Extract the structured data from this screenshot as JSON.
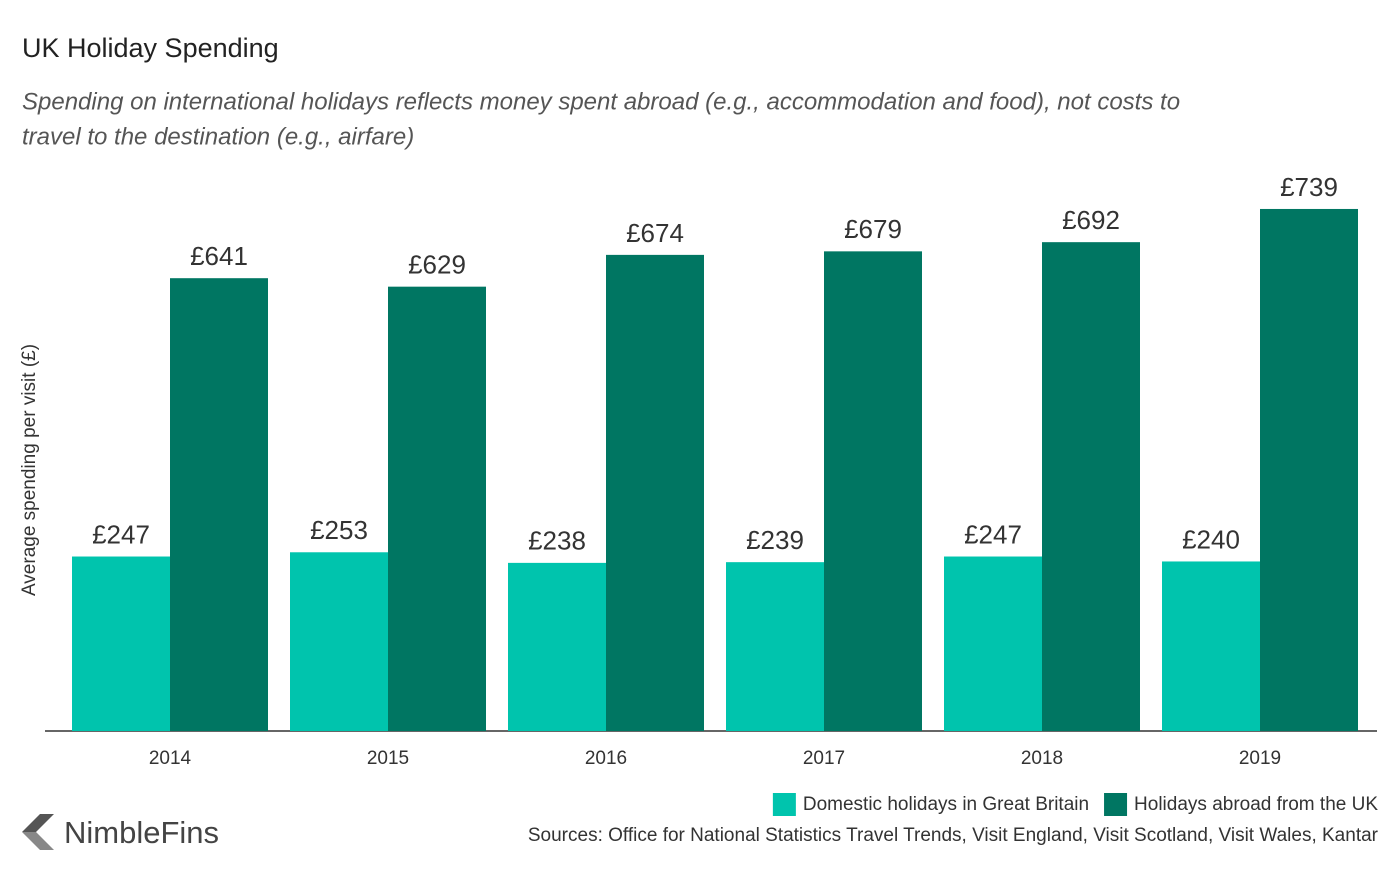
{
  "chart_data": {
    "type": "bar",
    "title": "UK Holiday Spending",
    "subtitle": [
      "Spending on international holidays reflects money spent abroad (e.g., accommodation and food), not costs to",
      "travel to the destination (e.g., airfare)"
    ],
    "y_label": "Average spending per visit (£)",
    "categories": [
      "2014",
      "2015",
      "2016",
      "2017",
      "2018",
      "2019"
    ],
    "series": [
      {
        "name": "Domestic holidays in Great Britain",
        "color": "#00c4ad",
        "values": [
          247,
          253,
          238,
          239,
          247,
          240
        ],
        "value_labels": [
          "£247",
          "£253",
          "£238",
          "£239",
          "£247",
          "£240"
        ]
      },
      {
        "name": "Holidays abroad from the UK",
        "color": "#007662",
        "values": [
          641,
          629,
          674,
          679,
          692,
          739
        ],
        "value_labels": [
          "£641",
          "£629",
          "£674",
          "£679",
          "£692",
          "£739"
        ]
      }
    ],
    "ylim": [
      0,
      780
    ],
    "source": "Sources: Office for National Statistics Travel Trends, Visit England, Visit Scotland, Visit Wales, Kantar",
    "brand": "NimbleFins"
  }
}
